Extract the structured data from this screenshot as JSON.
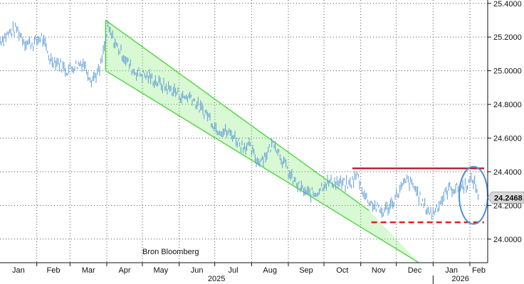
{
  "chart_data": {
    "type": "line",
    "title": "",
    "source_note": "Bron Bloomberg",
    "xlabel": "",
    "ylabel": "",
    "x_months": [
      "Jan",
      "Feb",
      "Mar",
      "Apr",
      "May",
      "Jun",
      "Jul",
      "Aug",
      "Sep",
      "Oct",
      "Nov",
      "Dec",
      "Jan",
      "Feb"
    ],
    "year_labels": [
      "2025",
      "2026"
    ],
    "ylim": [
      23.86,
      25.42
    ],
    "y_ticks": [
      24.0,
      24.2,
      24.4,
      24.6,
      24.8,
      25.0,
      25.2,
      25.4
    ],
    "y_tick_labels": [
      "24.0000",
      "24.2000",
      "24.4000",
      "24.6000",
      "24.8000",
      "25.0000",
      "25.2000",
      "25.4000"
    ],
    "grid": true,
    "last_value": 24.2468,
    "last_value_label": "24.2468",
    "series": [
      {
        "type": "price",
        "color": "#5b9bd5",
        "points": [
          [
            "2025-01-01",
            25.18
          ],
          [
            "2025-01-08",
            25.22
          ],
          [
            "2025-01-15",
            25.25
          ],
          [
            "2025-01-22",
            25.17
          ],
          [
            "2025-01-29",
            25.16
          ],
          [
            "2025-02-05",
            25.2
          ],
          [
            "2025-02-12",
            25.07
          ],
          [
            "2025-02-19",
            25.05
          ],
          [
            "2025-02-26",
            25.0
          ],
          [
            "2025-03-05",
            25.03
          ],
          [
            "2025-03-12",
            25.05
          ],
          [
            "2025-03-19",
            24.95
          ],
          [
            "2025-03-26",
            25.0
          ],
          [
            "2025-04-02",
            25.25
          ],
          [
            "2025-04-09",
            25.15
          ],
          [
            "2025-04-16",
            25.08
          ],
          [
            "2025-04-23",
            25.0
          ],
          [
            "2025-04-30",
            24.98
          ],
          [
            "2025-05-07",
            24.96
          ],
          [
            "2025-05-14",
            24.93
          ],
          [
            "2025-05-21",
            24.9
          ],
          [
            "2025-05-28",
            24.88
          ],
          [
            "2025-06-04",
            24.84
          ],
          [
            "2025-06-11",
            24.85
          ],
          [
            "2025-06-18",
            24.78
          ],
          [
            "2025-06-25",
            24.74
          ],
          [
            "2025-07-02",
            24.66
          ],
          [
            "2025-07-09",
            24.64
          ],
          [
            "2025-07-16",
            24.62
          ],
          [
            "2025-07-23",
            24.56
          ],
          [
            "2025-07-30",
            24.55
          ],
          [
            "2025-08-06",
            24.46
          ],
          [
            "2025-08-13",
            24.5
          ],
          [
            "2025-08-20",
            24.58
          ],
          [
            "2025-08-27",
            24.47
          ],
          [
            "2025-09-03",
            24.37
          ],
          [
            "2025-09-10",
            24.31
          ],
          [
            "2025-09-17",
            24.27
          ],
          [
            "2025-09-24",
            24.27
          ],
          [
            "2025-10-01",
            24.33
          ],
          [
            "2025-10-08",
            24.34
          ],
          [
            "2025-10-15",
            24.33
          ],
          [
            "2025-10-22",
            24.32
          ],
          [
            "2025-10-29",
            24.38
          ],
          [
            "2025-11-05",
            24.25
          ],
          [
            "2025-11-12",
            24.2
          ],
          [
            "2025-11-19",
            24.16
          ],
          [
            "2025-11-26",
            24.2
          ],
          [
            "2025-12-03",
            24.28
          ],
          [
            "2025-12-10",
            24.35
          ],
          [
            "2025-12-17",
            24.3
          ],
          [
            "2025-12-24",
            24.2
          ],
          [
            "2025-12-31",
            24.15
          ],
          [
            "2026-01-07",
            24.22
          ],
          [
            "2026-01-14",
            24.3
          ],
          [
            "2026-01-21",
            24.3
          ],
          [
            "2026-01-28",
            24.32
          ],
          [
            "2026-02-04",
            24.35
          ],
          [
            "2026-02-09",
            24.2468
          ]
        ]
      },
      {
        "type": "channel_upper",
        "color": "#58d84b",
        "points": [
          [
            "2025-03-31",
            25.3
          ],
          [
            "2025-11-08",
            24.17
          ]
        ]
      },
      {
        "type": "channel_lower",
        "color": "#58d84b",
        "points": [
          [
            "2025-03-31",
            25.0
          ],
          [
            "2025-12-20",
            23.86
          ]
        ]
      },
      {
        "type": "resistance",
        "color": "#c0203a",
        "value": 24.42,
        "range": [
          "2025-10-25",
          "2026-02-13"
        ]
      },
      {
        "type": "support",
        "color": "#e02020",
        "value": 24.1,
        "range": [
          "2025-11-10",
          "2026-02-13"
        ]
      }
    ],
    "highlight": {
      "type": "ellipse",
      "color": "#4a90d9",
      "center": [
        "2026-02-04",
        24.26
      ],
      "radius_days": 12,
      "radius_value": 0.17
    }
  }
}
